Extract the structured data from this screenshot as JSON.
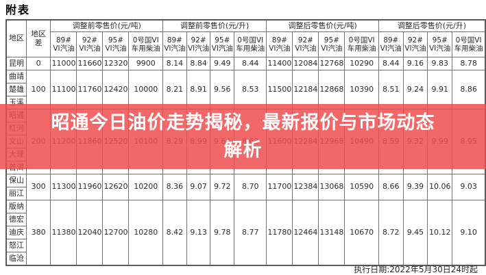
{
  "page_title": "附表",
  "table": {
    "corner": {
      "region": "地区",
      "region_diff": "地区差"
    },
    "group_headers": [
      "调整前零售价(元/吨)",
      "调整前零售价(元/升)",
      "调整后零售价(元/吨)",
      "调整后零售价(元/升)"
    ],
    "fuel_columns": [
      "89# VI汽油",
      "92# VI汽油",
      "95# VI汽油",
      "0号国VI车用柴油"
    ],
    "groups": [
      {
        "regions": [
          "昆明"
        ],
        "diff": "0",
        "values": [
          "11000",
          "11660",
          "12320",
          "9900",
          "8.14",
          "8.84",
          "9.49",
          "8.44",
          "11400",
          "12084",
          "12768",
          "10290",
          "8.44",
          "9.16",
          "9.83",
          "8.78"
        ]
      },
      {
        "regions": [
          "曲靖",
          "楚雄",
          "玉溪"
        ],
        "diff": "100",
        "values": [
          "11100",
          "11760",
          "12420",
          "10000",
          "8.21",
          "8.91",
          "9.56",
          "8.53",
          "11500",
          "12184",
          "12868",
          "10390",
          "8.51",
          "9.24",
          "9.91",
          "8.86"
        ]
      },
      {
        "regions": [
          "昭通",
          "红河",
          "文山",
          "大理",
          "普洱"
        ],
        "diff": "200",
        "values": [
          "11200",
          "11860",
          "12520",
          "10100",
          "8.29",
          "8.99",
          "9.64",
          "8.62",
          "11600",
          "12284",
          "12968",
          "10490",
          "8.59",
          "9.32",
          "9.99",
          "8.95"
        ]
      },
      {
        "regions": [
          "保山",
          "丽江"
        ],
        "diff": "300",
        "values": [
          "11300",
          "11960",
          "12620",
          "10200",
          "8.36",
          "9.07",
          "9.72",
          "8.70",
          "11700",
          "12384",
          "13068",
          "10590",
          "8.66",
          "9.39",
          "10.06",
          "9.03"
        ]
      },
      {
        "regions": [
          "版纳",
          "德宏",
          "迪庆",
          "怒江",
          "临沧"
        ],
        "diff": "380",
        "values": [
          "11380",
          "12040",
          "12700",
          "10280",
          "8.42",
          "9.13",
          "9.78",
          "8.77",
          "11780",
          "12464",
          "13148",
          "10670",
          "8.72",
          "9.45",
          "10.12",
          "9.10"
        ]
      }
    ]
  },
  "banner": {
    "line1": "昭通今日油价走势揭秘，最新报价与市场动态",
    "line2": "解析",
    "bg_color_rgba": "rgba(240,77,77,0.85)",
    "text_color": "#ffffff"
  },
  "footer": {
    "execution_date": "执行日期:2022年5月30日24时起"
  }
}
